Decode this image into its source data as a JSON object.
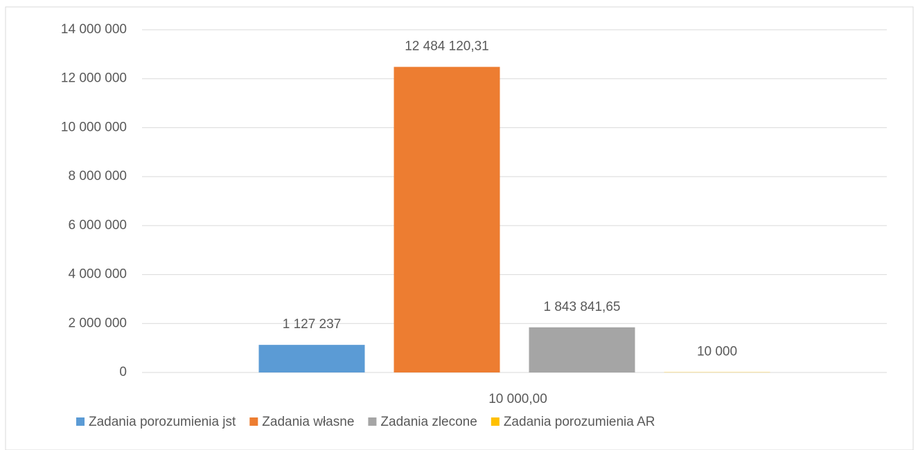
{
  "chart_data": {
    "type": "bar",
    "categories": [
      "10 000,00"
    ],
    "series": [
      {
        "name": "Zadania porozumienia jst",
        "color": "#5b9bd5",
        "values": [
          1127237
        ],
        "value_labels": [
          "1 127 237"
        ]
      },
      {
        "name": "Zadania własne",
        "color": "#ed7d31",
        "values": [
          12484120.31
        ],
        "value_labels": [
          "12 484 120,31"
        ]
      },
      {
        "name": "Zadania zlecone",
        "color": "#a5a5a5",
        "values": [
          1843841.65
        ],
        "value_labels": [
          "1 843 841,65"
        ]
      },
      {
        "name": "Zadania porozumienia AR",
        "color": "#ffc000",
        "values": [
          10000
        ],
        "value_labels": [
          "10 000"
        ]
      }
    ],
    "ylim": [
      0,
      14000000
    ],
    "yticks": [
      0,
      {
        "value": 2000000,
        "label": "2 000 000"
      },
      {
        "value": 4000000,
        "label": "4 000 000"
      },
      {
        "value": 6000000,
        "label": "6 000 000"
      },
      {
        "value": 8000000,
        "label": "8 000 000"
      },
      {
        "value": 10000000,
        "label": "10 000 000"
      },
      {
        "value": 12000000,
        "label": "12 000 000"
      },
      {
        "value": 14000000,
        "label": "14 000 000"
      }
    ],
    "grid": true,
    "legend": "bottom"
  }
}
